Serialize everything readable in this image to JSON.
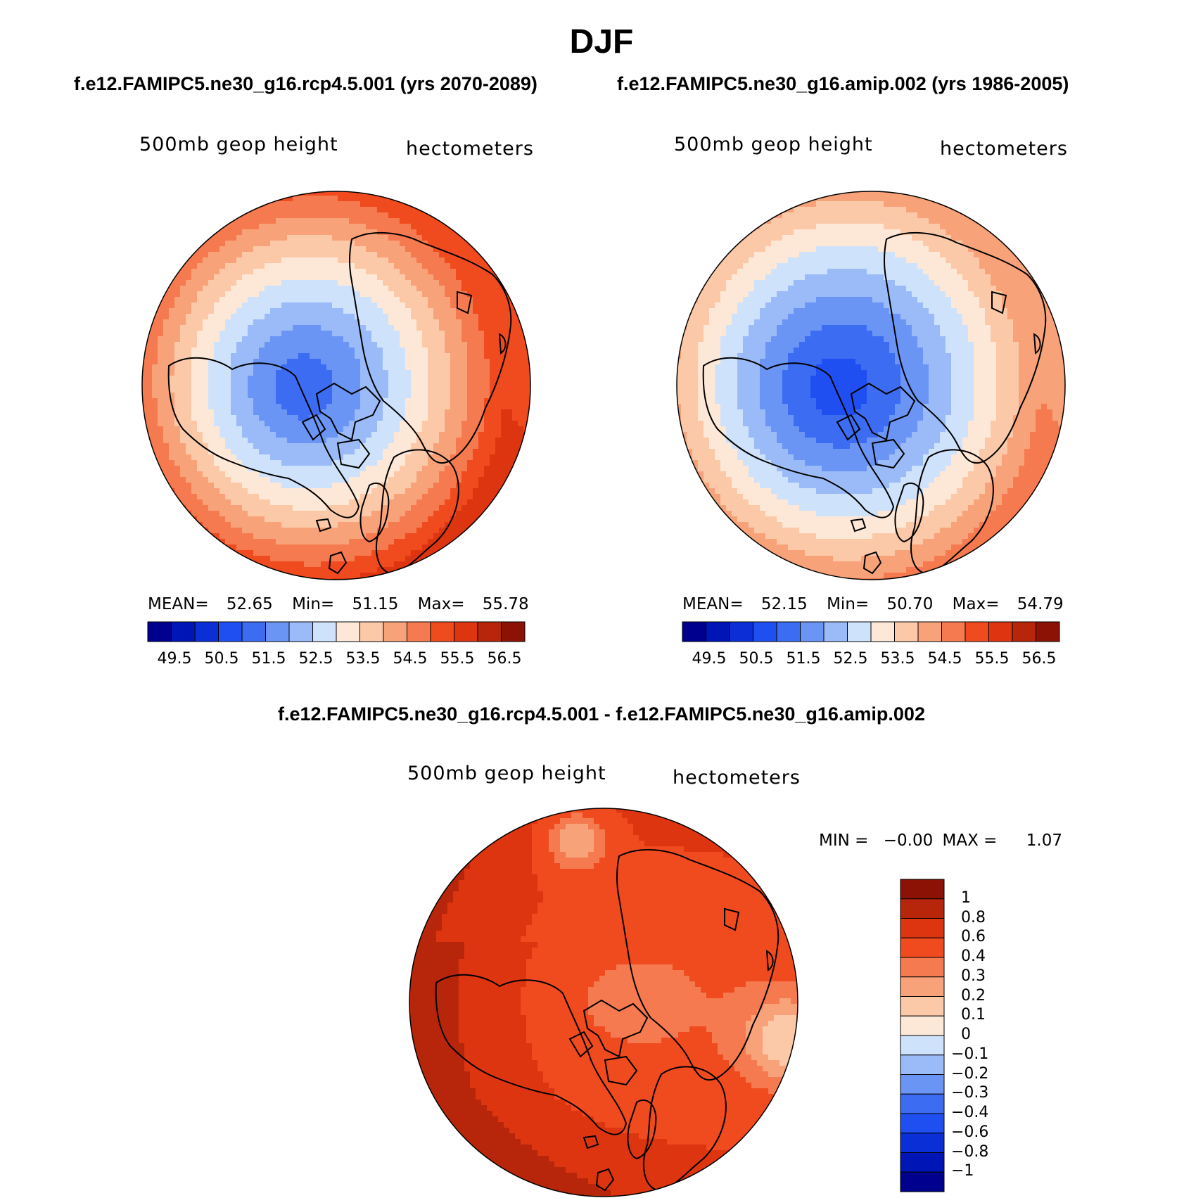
{
  "figure": {
    "title": "DJF",
    "case1_title": "f.e12.FAMIPC5.ne30_g16.rcp4.5.001 (yrs 2070-2089)",
    "case2_title": "f.e12.FAMIPC5.ne30_g16.amip.002 (yrs 1986-2005)",
    "diff_title": "f.e12.FAMIPC5.ne30_g16.rcp4.5.001 - f.e12.FAMIPC5.ne30_g16.amip.002"
  },
  "colors": {
    "abs_scale": [
      "#00008f",
      "#0015b5",
      "#0a2fd6",
      "#1f4ff0",
      "#3c6cf2",
      "#6a95f5",
      "#9bbbf8",
      "#cfe2fb",
      "#fde8d8",
      "#fbc9a8",
      "#f8a27a",
      "#f57a4f",
      "#f04a1f",
      "#dd3510",
      "#b7260b",
      "#8c1206"
    ],
    "diff_scale": [
      "#00008f",
      "#0015b5",
      "#0a2fd6",
      "#1f4ff0",
      "#3c6cf2",
      "#6a95f5",
      "#9bbbf8",
      "#cfe2fb",
      "#fde8d8",
      "#fbc9a8",
      "#f8a27a",
      "#f57a4f",
      "#f04a1f",
      "#dd3510",
      "#b7260b",
      "#8c1206"
    ]
  },
  "chart_data": [
    {
      "type": "heatmap",
      "projection": "polar stereographic (north)",
      "panel": "case1",
      "variable_label": "500mb geop height",
      "units_label": "hectometers",
      "stats": {
        "mean_label": "MEAN=",
        "mean": "52.65",
        "min_label": "Min=",
        "min": "51.15",
        "max_label": "Max=",
        "max": "55.78"
      },
      "colorbar_ticks": [
        "49.5",
        "50.5",
        "51.5",
        "52.5",
        "53.5",
        "54.5",
        "55.5",
        "56.5"
      ],
      "colorbar_levels": [
        49.5,
        50.0,
        50.5,
        51.0,
        51.5,
        52.0,
        52.5,
        53.0,
        53.5,
        54.0,
        54.5,
        55.0,
        55.5,
        56.0,
        56.5
      ],
      "field_summary": {
        "polar_min_level": 51.15,
        "edge_max_level": 55.78
      }
    },
    {
      "type": "heatmap",
      "projection": "polar stereographic (north)",
      "panel": "case2",
      "variable_label": "500mb geop height",
      "units_label": "hectometers",
      "stats": {
        "mean_label": "MEAN=",
        "mean": "52.15",
        "min_label": "Min=",
        "min": "50.70",
        "max_label": "Max=",
        "max": "54.79"
      },
      "colorbar_ticks": [
        "49.5",
        "50.5",
        "51.5",
        "52.5",
        "53.5",
        "54.5",
        "55.5",
        "56.5"
      ],
      "colorbar_levels": [
        49.5,
        50.0,
        50.5,
        51.0,
        51.5,
        52.0,
        52.5,
        53.0,
        53.5,
        54.0,
        54.5,
        55.0,
        55.5,
        56.0,
        56.5
      ],
      "field_summary": {
        "polar_min_level": 50.7,
        "edge_max_level": 54.79
      }
    },
    {
      "type": "heatmap",
      "projection": "polar stereographic (north)",
      "panel": "difference",
      "variable_label": "500mb geop height",
      "units_label": "hectometers",
      "stats": {
        "min_label": "MIN =",
        "min": "−0.00",
        "max_label": "MAX =",
        "max": "1.07"
      },
      "colorbar_ticks": [
        "1",
        "0.8",
        "0.6",
        "0.4",
        "0.3",
        "0.2",
        "0.1",
        "0",
        "−0.1",
        "−0.2",
        "−0.3",
        "−0.4",
        "−0.6",
        "−0.8",
        "−1"
      ],
      "colorbar_levels": [
        1,
        0.8,
        0.6,
        0.4,
        0.3,
        0.2,
        0.1,
        0,
        -0.1,
        -0.2,
        -0.3,
        -0.4,
        -0.6,
        -0.8,
        -1
      ],
      "field_summary": {
        "min": 0.0,
        "max": 1.07
      }
    }
  ]
}
